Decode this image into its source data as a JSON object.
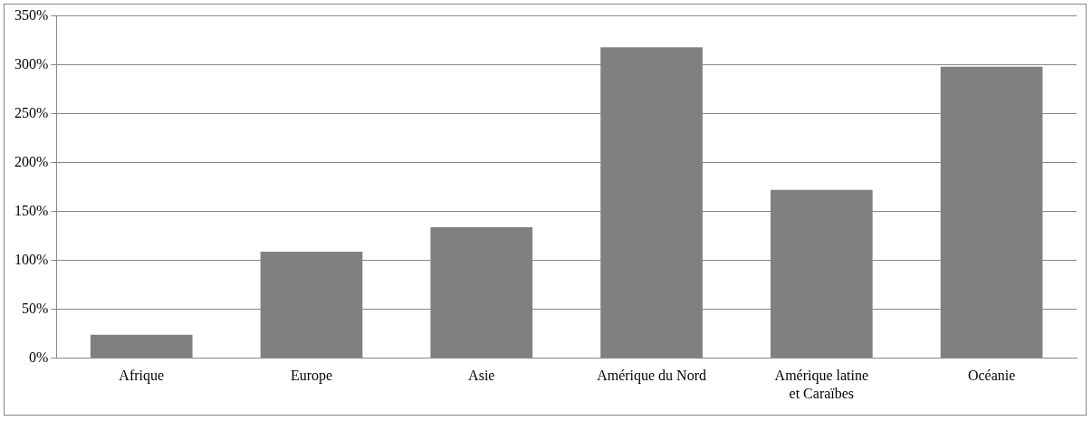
{
  "chart_data": {
    "type": "bar",
    "categories": [
      "Afrique",
      "Europe",
      "Asie",
      "Amérique du Nord",
      "Amérique latine et Caraïbes",
      "Océanie"
    ],
    "values": [
      24,
      109,
      134,
      318,
      172,
      298
    ],
    "color": "#808080",
    "ylim": [
      0,
      350
    ],
    "yticks": [
      {
        "value": 0,
        "label": "0%"
      },
      {
        "value": 50,
        "label": "50%"
      },
      {
        "value": 100,
        "label": "100%"
      },
      {
        "value": 150,
        "label": "150%"
      },
      {
        "value": 200,
        "label": "200%"
      },
      {
        "value": 250,
        "label": "250%"
      },
      {
        "value": 300,
        "label": "300%"
      },
      {
        "value": 350,
        "label": "350%"
      }
    ],
    "grid": "y",
    "legend": false
  }
}
